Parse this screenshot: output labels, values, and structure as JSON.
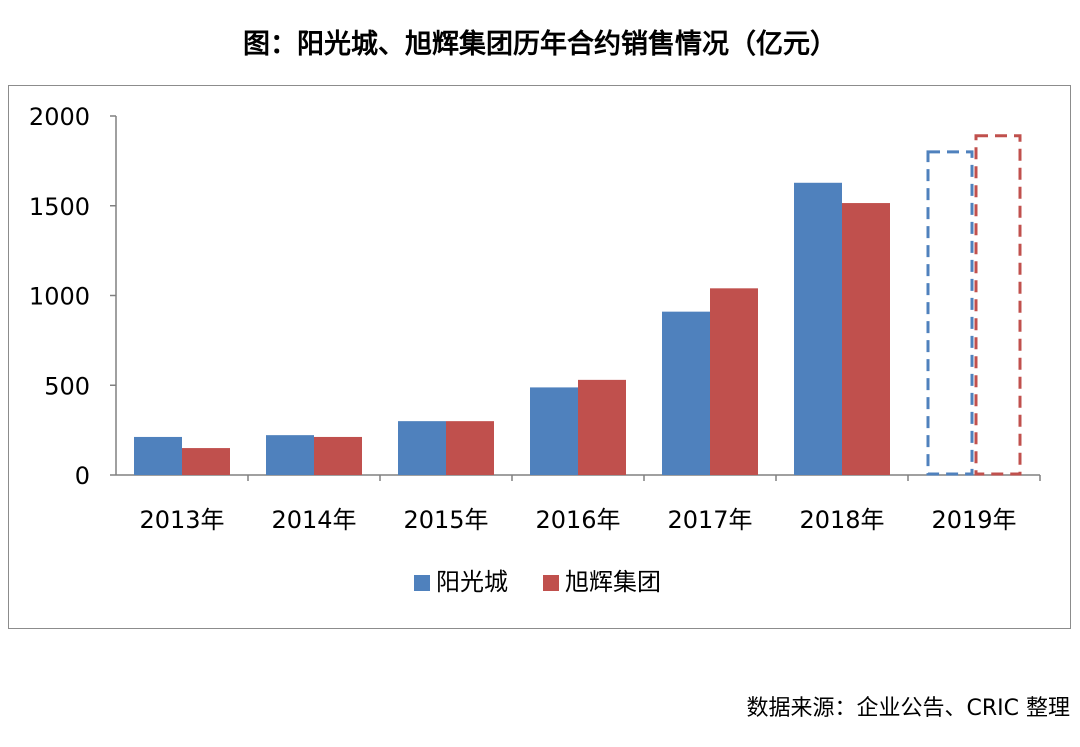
{
  "title": "图：阳光城、旭辉集团历年合约销售情况（亿元）",
  "source": "数据来源：企业公告、CRIC 整理",
  "colors": {
    "series1": "#4f81bd",
    "series2": "#c0504d",
    "axis": "#808080",
    "frame": "#8c8c8c"
  },
  "chart_data": {
    "type": "bar",
    "title": "图：阳光城、旭辉集团历年合约销售情况（亿元）",
    "xlabel": "",
    "ylabel": "",
    "categories": [
      "2013年",
      "2014年",
      "2015年",
      "2016年",
      "2017年",
      "2018年",
      "2019年"
    ],
    "series": [
      {
        "name": "阳光城",
        "values": [
          212,
          222,
          300,
          488,
          910,
          1628,
          null
        ],
        "projected": [
          null,
          null,
          null,
          null,
          null,
          null,
          1800
        ]
      },
      {
        "name": "旭辉集团",
        "values": [
          150,
          212,
          300,
          530,
          1040,
          1515,
          null
        ],
        "projected": [
          null,
          null,
          null,
          null,
          null,
          null,
          1890
        ]
      }
    ],
    "ylim": [
      0,
      2000
    ],
    "yticks": [
      "0",
      "500",
      "1000",
      "1500",
      "2000"
    ],
    "grid": false,
    "legend": "bottom"
  }
}
